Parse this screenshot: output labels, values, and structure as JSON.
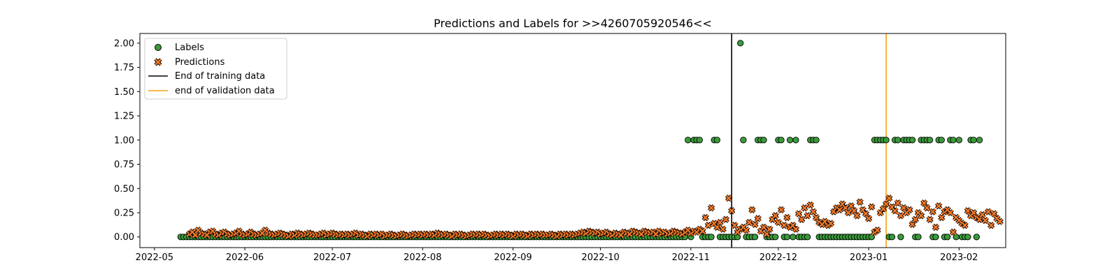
{
  "chart_data": {
    "type": "scatter",
    "title": "Predictions and Labels for >>4260705920546<<",
    "xlabel": "",
    "ylabel": "",
    "x_range": [
      "2022-04-26",
      "2023-02-17"
    ],
    "ylim": [
      -0.11,
      2.1
    ],
    "y_ticks": [
      "0.00",
      "0.25",
      "0.50",
      "0.75",
      "1.00",
      "1.25",
      "1.50",
      "1.75",
      "2.00"
    ],
    "x_ticks": [
      {
        "date": "2022-05-01",
        "label": "2022-05"
      },
      {
        "date": "2022-06-01",
        "label": "2022-06"
      },
      {
        "date": "2022-07-01",
        "label": "2022-07"
      },
      {
        "date": "2022-08-01",
        "label": "2022-08"
      },
      {
        "date": "2022-09-01",
        "label": "2022-09"
      },
      {
        "date": "2022-10-01",
        "label": "2022-10"
      },
      {
        "date": "2022-11-01",
        "label": "2022-11"
      },
      {
        "date": "2022-12-01",
        "label": "2022-12"
      },
      {
        "date": "2023-01-01",
        "label": "2023-01"
      },
      {
        "date": "2023-02-01",
        "label": "2023-02"
      }
    ],
    "grid": false,
    "legend_position": "top-left",
    "series": [
      {
        "name": "Labels",
        "marker": "circle",
        "color": "#3a9a3a",
        "start_date": "2022-05-10",
        "values": [
          0,
          0,
          0,
          0,
          0,
          0,
          0,
          0,
          0,
          0,
          0,
          0,
          0,
          0,
          0,
          0,
          0,
          0,
          0,
          0,
          0,
          0,
          0,
          0,
          0,
          0,
          0,
          0,
          0,
          0,
          0,
          0,
          0,
          0,
          0,
          0,
          0,
          0,
          0,
          0,
          0,
          0,
          0,
          0,
          0,
          0,
          0,
          0,
          0,
          0,
          0,
          0,
          0,
          0,
          0,
          0,
          0,
          0,
          0,
          0,
          0,
          0,
          0,
          0,
          0,
          0,
          0,
          0,
          0,
          0,
          0,
          0,
          0,
          0,
          0,
          0,
          0,
          0,
          0,
          0,
          0,
          0,
          0,
          0,
          0,
          0,
          0,
          0,
          0,
          0,
          0,
          0,
          0,
          0,
          0,
          0,
          0,
          0,
          0,
          0,
          0,
          0,
          0,
          0,
          0,
          0,
          0,
          0,
          0,
          0,
          0,
          0,
          0,
          0,
          0,
          0,
          0,
          0,
          0,
          0,
          0,
          0,
          0,
          0,
          0,
          0,
          0,
          0,
          0,
          0,
          0,
          0,
          0,
          0,
          0,
          0,
          0,
          0,
          0,
          0,
          0,
          0,
          0,
          0,
          0,
          0,
          0,
          0,
          0,
          0,
          0,
          0,
          0,
          0,
          0,
          0,
          0,
          0,
          0,
          0,
          0,
          0,
          0,
          0,
          0,
          0,
          0,
          0,
          0,
          0,
          0,
          0,
          0,
          0,
          1,
          0,
          1,
          1,
          1,
          0,
          0,
          0,
          0,
          1,
          1,
          0,
          0,
          0,
          0,
          0,
          0,
          0,
          2,
          1,
          0,
          0,
          0,
          0,
          1,
          1,
          1,
          0,
          0,
          0,
          0,
          1,
          1,
          0,
          0,
          1,
          0,
          1,
          0,
          0,
          0,
          0,
          1,
          1,
          1,
          0,
          0,
          0,
          0,
          0,
          0,
          0,
          0,
          0,
          0,
          0,
          0,
          0,
          0,
          0,
          0,
          0,
          0,
          0,
          1,
          1,
          1,
          1,
          1,
          0,
          0,
          1,
          1,
          0,
          1,
          1,
          1,
          1,
          0,
          0,
          1,
          1,
          1,
          1,
          0,
          0,
          1,
          1,
          0,
          0,
          1,
          1,
          0,
          1,
          0,
          0,
          0,
          1,
          1,
          0,
          1
        ]
      },
      {
        "name": "Predictions",
        "marker": "x",
        "color": "#f07828",
        "start_date": "2022-05-13",
        "values": [
          0.03,
          0.05,
          0.02,
          0.07,
          0.04,
          0.03,
          0.02,
          0.05,
          0.06,
          0.03,
          0.02,
          0.04,
          0.05,
          0.03,
          0.02,
          0.03,
          0.04,
          0.06,
          0.03,
          0.02,
          0.03,
          0.05,
          0.03,
          0.02,
          0.03,
          0.04,
          0.07,
          0.04,
          0.03,
          0.02,
          0.03,
          0.04,
          0.03,
          0.02,
          0.01,
          0.03,
          0.02,
          0.04,
          0.03,
          0.02,
          0.03,
          0.04,
          0.03,
          0.02,
          0.02,
          0.03,
          0.04,
          0.02,
          0.03,
          0.04,
          0.03,
          0.02,
          0.03,
          0.02,
          0.03,
          0.02,
          0.03,
          0.04,
          0.02,
          0.03,
          0.02,
          0.01,
          0.03,
          0.02,
          0.03,
          0.02,
          0.03,
          0.01,
          0.02,
          0.03,
          0.02,
          0.01,
          0.02,
          0.03,
          0.02,
          0.01,
          0.02,
          0.03,
          0.02,
          0.03,
          0.02,
          0.03,
          0.02,
          0.03,
          0.02,
          0.04,
          0.03,
          0.02,
          0.03,
          0.02,
          0.01,
          0.03,
          0.02,
          0.03,
          0.02,
          0.01,
          0.02,
          0.03,
          0.02,
          0.03,
          0.02,
          0.03,
          0.02,
          0.01,
          0.02,
          0.03,
          0.02,
          0.03,
          0.02,
          0.03,
          0.02,
          0.01,
          0.03,
          0.02,
          0.03,
          0.02,
          0.01,
          0.03,
          0.02,
          0.03,
          0.02,
          0.03,
          0.02,
          0.02,
          0.03,
          0.02,
          0.01,
          0.03,
          0.02,
          0.03,
          0.02,
          0.03,
          0.02,
          0.03,
          0.04,
          0.05,
          0.04,
          0.06,
          0.05,
          0.04,
          0.05,
          0.03,
          0.04,
          0.05,
          0.03,
          0.02,
          0.04,
          0.03,
          0.02,
          0.05,
          0.04,
          0.03,
          0.06,
          0.05,
          0.04,
          0.03,
          0.06,
          0.05,
          0.04,
          0.05,
          0.03,
          0.06,
          0.04,
          0.05,
          0.03,
          0.04,
          0.06,
          0.05,
          0.04,
          0.03,
          0.05,
          0.07,
          0.04,
          0.06,
          0.05,
          0.08,
          0.06,
          0.2,
          0.12,
          0.3,
          0.14,
          0.1,
          0.15,
          0.08,
          0.18,
          0.4,
          0.27,
          0.12,
          0.05,
          0.08,
          0.1,
          0.07,
          0.15,
          0.28,
          0.13,
          0.19,
          0.06,
          0.1,
          0.03,
          0.08,
          0.18,
          0.22,
          0.15,
          0.28,
          0.12,
          0.2,
          0.1,
          0.12,
          0.08,
          0.24,
          0.18,
          0.3,
          0.22,
          0.33,
          0.26,
          0.2,
          0.15,
          0.13,
          0.16,
          0.12,
          0.14,
          0.26,
          0.3,
          0.28,
          0.34,
          0.3,
          0.25,
          0.32,
          0.27,
          0.22,
          0.36,
          0.28,
          0.24,
          0.19,
          0.31,
          0.05,
          0.07,
          0.25,
          0.29,
          0.34,
          0.4,
          0.31,
          0.27,
          0.35,
          0.22,
          0.3,
          0.25,
          0.28,
          0.13,
          0.18,
          0.25,
          0.22,
          0.35,
          0.3,
          0.18,
          0.26,
          0.1,
          0.32,
          0.2,
          0.26,
          0.28,
          0.25,
          0.05,
          0.2,
          0.17,
          0.14,
          0.12,
          0.27,
          0.22,
          0.25,
          0.2,
          0.18,
          0.23,
          0.17,
          0.26,
          0.12,
          0.24,
          0.19,
          0.16
        ]
      }
    ],
    "vlines": [
      {
        "name": "End of training data",
        "date": "2022-11-15",
        "color": "#000000"
      },
      {
        "name": "end of validation data",
        "date": "2023-01-07",
        "color": "#f5a00f"
      }
    ]
  }
}
